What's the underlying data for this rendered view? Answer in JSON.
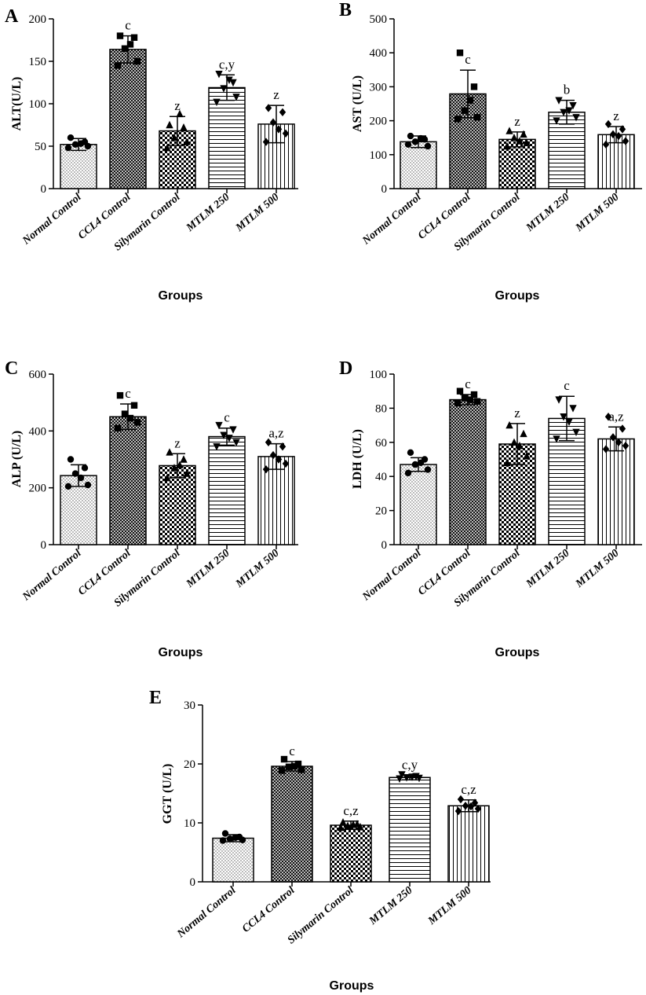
{
  "chart_data": [
    {
      "id": "A",
      "type": "bar",
      "panel_label": "A",
      "title": "",
      "ylabel": "ALT(U/L)",
      "xlabel": "Groups",
      "ylim": [
        0,
        200
      ],
      "yticks": [
        0,
        50,
        100,
        150,
        200
      ],
      "categories": [
        "Normal Control",
        "CCL4 Control",
        "Silymarin Control",
        "MTLM 250",
        "MTLM 500"
      ],
      "values": [
        52,
        164,
        68,
        119,
        76
      ],
      "sd": [
        7,
        16,
        17,
        15,
        22
      ],
      "significance": [
        "",
        "c",
        "z",
        "c,y",
        "z"
      ],
      "points": [
        [
          60,
          55,
          52,
          50,
          48,
          53
        ],
        [
          180,
          178,
          165,
          150,
          145,
          170
        ],
        [
          75,
          72,
          60,
          55,
          48,
          88
        ],
        [
          135,
          125,
          118,
          108,
          102,
          128
        ],
        [
          95,
          90,
          78,
          65,
          55,
          70
        ]
      ],
      "markers": [
        "circle",
        "square",
        "triangle",
        "triangle-down",
        "diamond"
      ],
      "patterns": [
        "dots",
        "crosshatch",
        "checker",
        "hlines",
        "vlines"
      ]
    },
    {
      "id": "B",
      "type": "bar",
      "panel_label": "B",
      "title": "",
      "ylabel": "AST (U/L)",
      "xlabel": "Groups",
      "ylim": [
        0,
        500
      ],
      "yticks": [
        0,
        100,
        200,
        300,
        400,
        500
      ],
      "categories": [
        "Normal Control",
        "CCL4 Control",
        "Silymarin Control",
        "MTLM 250",
        "MTLM 500"
      ],
      "values": [
        138,
        279,
        145,
        225,
        159
      ],
      "sd": [
        17,
        70,
        22,
        35,
        24
      ],
      "significance": [
        "",
        "c",
        "z",
        "b",
        "z"
      ],
      "points": [
        [
          155,
          145,
          138,
          125,
          130,
          148
        ],
        [
          400,
          300,
          230,
          210,
          205,
          260
        ],
        [
          170,
          160,
          150,
          135,
          125,
          140
        ],
        [
          260,
          245,
          225,
          210,
          200,
          230
        ],
        [
          190,
          175,
          160,
          140,
          130,
          155
        ]
      ],
      "markers": [
        "circle",
        "square",
        "triangle",
        "triangle-down",
        "diamond"
      ],
      "patterns": [
        "dots",
        "crosshatch",
        "checker",
        "hlines",
        "vlines"
      ]
    },
    {
      "id": "C",
      "type": "bar",
      "panel_label": "C",
      "title": "",
      "ylabel": "ALP (U/L)",
      "xlabel": "Groups",
      "ylim": [
        0,
        600
      ],
      "yticks": [
        0,
        200,
        400,
        600
      ],
      "categories": [
        "Normal Control",
        "CCL4 Control",
        "Silymarin Control",
        "MTLM 250",
        "MTLM 500"
      ],
      "values": [
        243,
        450,
        278,
        380,
        310
      ],
      "sd": [
        38,
        45,
        42,
        30,
        45
      ],
      "significance": [
        "",
        "c",
        "z",
        "c",
        "a,z"
      ],
      "points": [
        [
          300,
          270,
          250,
          210,
          205,
          235
        ],
        [
          525,
          490,
          460,
          430,
          410,
          445
        ],
        [
          325,
          300,
          270,
          250,
          235,
          280
        ],
        [
          420,
          405,
          385,
          360,
          345,
          375
        ],
        [
          360,
          345,
          315,
          285,
          265,
          300
        ]
      ],
      "markers": [
        "circle",
        "square",
        "triangle",
        "triangle-down",
        "diamond"
      ],
      "patterns": [
        "dots",
        "crosshatch",
        "checker",
        "hlines",
        "vlines"
      ]
    },
    {
      "id": "D",
      "type": "bar",
      "panel_label": "D",
      "title": "",
      "ylabel": "LDH (U/L)",
      "xlabel": "Groups",
      "ylim": [
        0,
        100
      ],
      "yticks": [
        0,
        20,
        40,
        60,
        80,
        100
      ],
      "categories": [
        "Normal Control",
        "CCL4 Control",
        "Silymarin Control",
        "MTLM 250",
        "MTLM 500"
      ],
      "values": [
        47,
        85,
        59,
        74,
        62
      ],
      "sd": [
        4,
        3,
        12,
        13,
        7
      ],
      "significance": [
        "",
        "c",
        "z",
        "c",
        "a,z"
      ],
      "points": [
        [
          54,
          50,
          47,
          44,
          42,
          48
        ],
        [
          90,
          88,
          86,
          84,
          83,
          85
        ],
        [
          70,
          65,
          60,
          52,
          48,
          58
        ],
        [
          85,
          80,
          75,
          66,
          62,
          72
        ],
        [
          75,
          68,
          63,
          58,
          56,
          60
        ]
      ],
      "markers": [
        "circle",
        "square",
        "triangle",
        "triangle-down",
        "diamond"
      ],
      "patterns": [
        "dots",
        "crosshatch",
        "checker",
        "hlines",
        "vlines"
      ]
    },
    {
      "id": "E",
      "type": "bar",
      "panel_label": "E",
      "title": "",
      "ylabel": "GGT (U/L)",
      "xlabel": "Groups",
      "ylim": [
        0,
        30
      ],
      "yticks": [
        0,
        10,
        20,
        30
      ],
      "categories": [
        "Normal Control",
        "CCL4 Control",
        "Silymarin Control",
        "MTLM 250",
        "MTLM 500"
      ],
      "values": [
        7.4,
        19.6,
        9.6,
        17.7,
        12.9
      ],
      "sd": [
        0.6,
        0.8,
        0.7,
        0.4,
        1.0
      ],
      "significance": [
        "",
        "c",
        "c,z",
        "c,y",
        "c,z"
      ],
      "points": [
        [
          8.2,
          7.6,
          7.3,
          7.1,
          7.0,
          7.5
        ],
        [
          20.8,
          20.0,
          19.5,
          19.0,
          18.9,
          19.6
        ],
        [
          10.1,
          9.8,
          9.5,
          9.3,
          9.2,
          9.7
        ],
        [
          18.2,
          17.9,
          17.7,
          17.6,
          17.5,
          17.8
        ],
        [
          14.0,
          13.4,
          12.9,
          12.4,
          12.0,
          12.8
        ]
      ],
      "markers": [
        "circle",
        "square",
        "triangle",
        "triangle-down",
        "diamond"
      ],
      "patterns": [
        "dots",
        "crosshatch",
        "checker",
        "hlines",
        "vlines"
      ]
    }
  ]
}
